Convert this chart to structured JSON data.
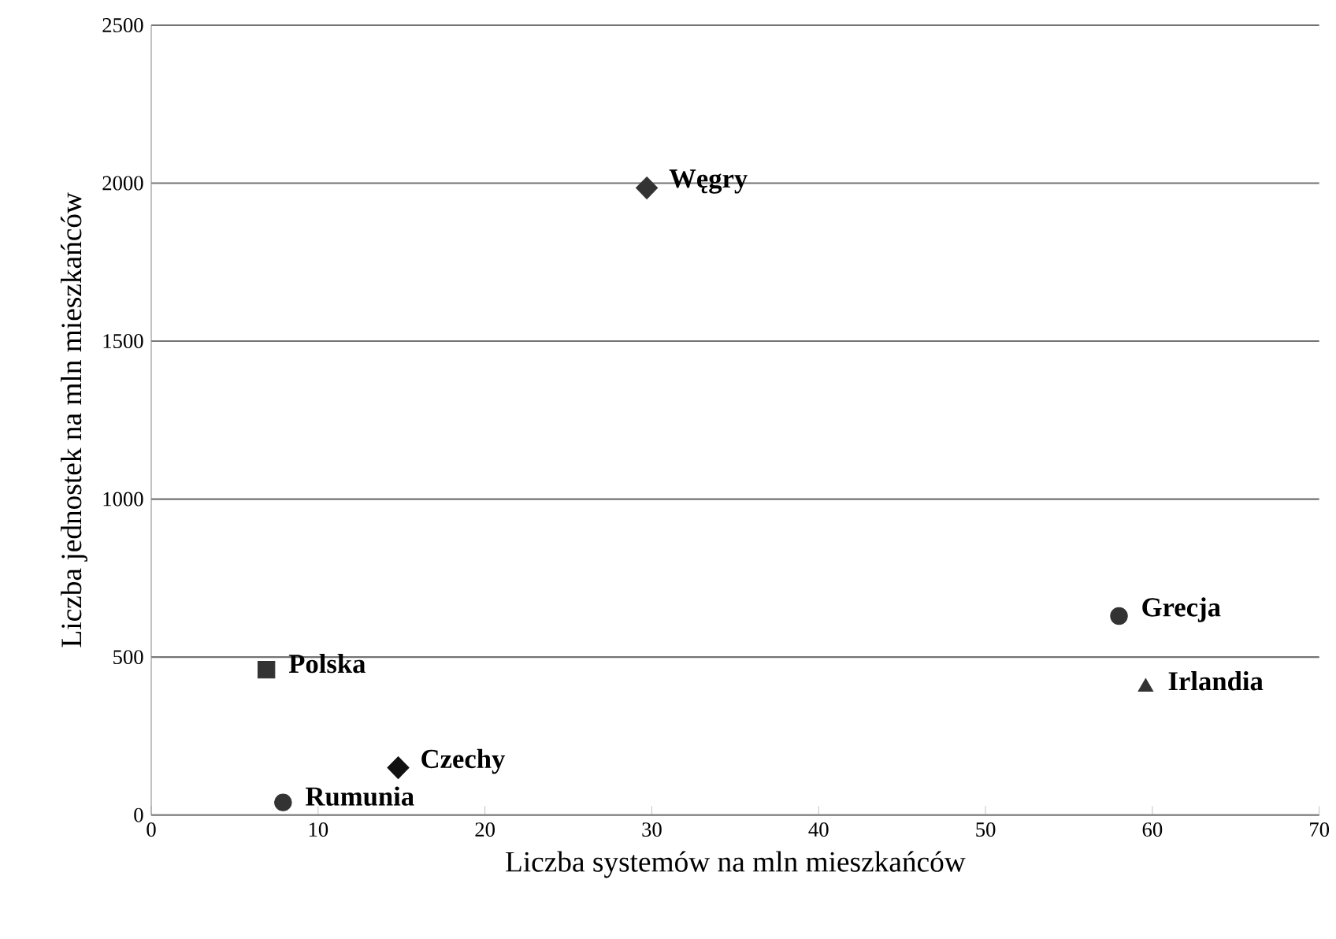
{
  "chart_data": {
    "type": "scatter",
    "xlabel": "Liczba systemów na mln mieszkańców",
    "ylabel": "Liczba jednostek na mln mieszkańców",
    "xlim": [
      0,
      70
    ],
    "ylim": [
      0,
      2500
    ],
    "xticks": [
      0,
      10,
      20,
      30,
      40,
      50,
      60,
      70
    ],
    "yticks": [
      0,
      500,
      1000,
      1500,
      2000,
      2500
    ],
    "grid": "y",
    "series": [
      {
        "name": "Węgry",
        "color": "#333333",
        "x": [
          29.7
        ],
        "values": [
          1985
        ],
        "marker": "diamond"
      },
      {
        "name": "Polska",
        "color": "#333333",
        "x": [
          6.9
        ],
        "values": [
          460
        ],
        "marker": "square"
      },
      {
        "name": "Rumunia",
        "color": "#333333",
        "x": [
          7.9
        ],
        "values": [
          40
        ],
        "marker": "circle"
      },
      {
        "name": "Czechy",
        "color": "#111111",
        "x": [
          14.8
        ],
        "values": [
          150
        ],
        "marker": "diamond"
      },
      {
        "name": "Grecja",
        "color": "#333333",
        "x": [
          58.0
        ],
        "values": [
          630
        ],
        "marker": "circle"
      },
      {
        "name": "Irlandia",
        "color": "#333333",
        "x": [
          59.6
        ],
        "values": [
          405
        ],
        "marker": "triangle"
      }
    ]
  }
}
